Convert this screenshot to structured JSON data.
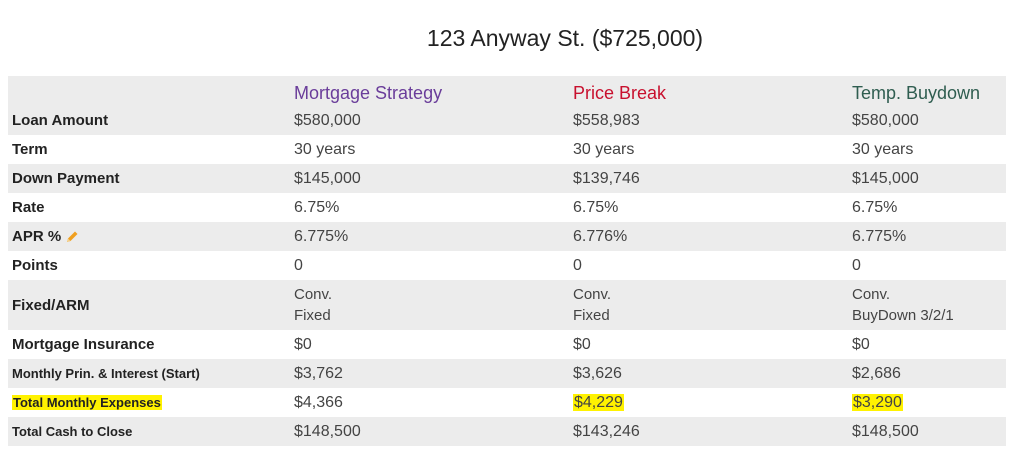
{
  "title": "123 Anyway St. ($725,000)",
  "columns": [
    {
      "label": "Mortgage Strategy",
      "color": "#6a3d9a"
    },
    {
      "label": "Price Break",
      "color": "#c8102e"
    },
    {
      "label": "Temp. Buydown",
      "color": "#2f5d50"
    }
  ],
  "rows": {
    "loan_amount": {
      "label": "Loan Amount",
      "values": [
        "$580,000",
        "$558,983",
        "$580,000"
      ]
    },
    "term": {
      "label": "Term",
      "values": [
        "30 years",
        "30 years",
        "30 years"
      ]
    },
    "down_payment": {
      "label": "Down Payment",
      "values": [
        "$145,000",
        "$139,746",
        "$145,000"
      ]
    },
    "rate": {
      "label": "Rate",
      "values": [
        "6.75%",
        "6.75%",
        "6.75%"
      ]
    },
    "apr": {
      "label": "APR %",
      "icon": "pencil-icon",
      "values": [
        "6.775%",
        "6.776%",
        "6.775%"
      ]
    },
    "points": {
      "label": "Points",
      "values": [
        "0",
        "0",
        "0"
      ]
    },
    "fixed_arm": {
      "label": "Fixed/ARM",
      "values": [
        {
          "line1": "Conv.",
          "line2": "Fixed"
        },
        {
          "line1": "Conv.",
          "line2": "Fixed"
        },
        {
          "line1": "Conv.",
          "line2": "BuyDown 3/2/1"
        }
      ]
    },
    "mortgage_insurance": {
      "label": "Mortgage Insurance",
      "values": [
        "$0",
        "$0",
        "$0"
      ]
    },
    "monthly_pi": {
      "label": "Monthly Prin. & Interest (Start)",
      "values": [
        "$3,762",
        "$3,626",
        "$2,686"
      ]
    },
    "total_monthly": {
      "label": "Total Monthly Expenses",
      "values": [
        "$4,366",
        "$4,229",
        "$3,290"
      ]
    },
    "cash_to_close": {
      "label": "Total Cash to Close",
      "values": [
        "$148,500",
        "$143,246",
        "$148,500"
      ]
    }
  },
  "highlight_color": "#fff200",
  "pencil_color": "#f0a020"
}
